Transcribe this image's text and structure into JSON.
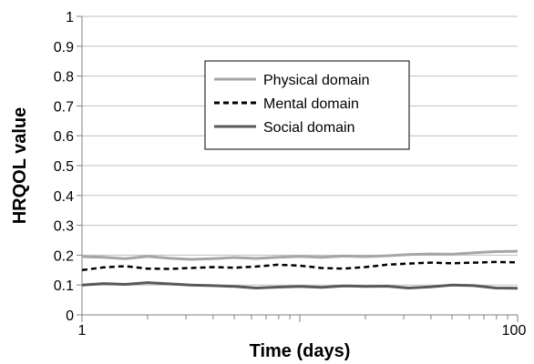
{
  "chart_data": {
    "type": "line",
    "title": "",
    "xlabel": "Time (days)",
    "ylabel": "HRQOL value",
    "x_scale": "log",
    "xlim": [
      1,
      100
    ],
    "ylim": [
      0,
      1
    ],
    "x_ticks": [
      "1",
      "100"
    ],
    "y_ticks": [
      "0",
      "0.1",
      "0.2",
      "0.3",
      "0.4",
      "0.5",
      "0.6",
      "0.7",
      "0.8",
      "0.9",
      "1"
    ],
    "grid": "horizontal",
    "legend_position": "top-center",
    "x": [
      1,
      1.26,
      1.58,
      2,
      2.51,
      3.16,
      3.98,
      5.01,
      6.31,
      7.94,
      10,
      12.6,
      15.8,
      20,
      25.1,
      31.6,
      39.8,
      50.1,
      63.1,
      79.4,
      100
    ],
    "series": [
      {
        "name": "Physical domain",
        "color": "#a6a6a6",
        "style": "solid",
        "values": [
          0.195,
          0.193,
          0.188,
          0.196,
          0.19,
          0.186,
          0.188,
          0.192,
          0.189,
          0.193,
          0.196,
          0.193,
          0.197,
          0.195,
          0.198,
          0.202,
          0.204,
          0.203,
          0.208,
          0.212,
          0.213
        ]
      },
      {
        "name": "Mental domain",
        "color": "#000000",
        "style": "dashed",
        "values": [
          0.15,
          0.159,
          0.163,
          0.155,
          0.154,
          0.157,
          0.16,
          0.158,
          0.162,
          0.168,
          0.165,
          0.157,
          0.155,
          0.16,
          0.168,
          0.172,
          0.175,
          0.173,
          0.175,
          0.177,
          0.176
        ]
      },
      {
        "name": "Social domain",
        "color": "#595959",
        "style": "solid",
        "values": [
          0.1,
          0.105,
          0.102,
          0.108,
          0.104,
          0.1,
          0.098,
          0.095,
          0.09,
          0.093,
          0.095,
          0.092,
          0.097,
          0.095,
          0.096,
          0.09,
          0.094,
          0.1,
          0.098,
          0.09,
          0.089
        ]
      }
    ]
  }
}
